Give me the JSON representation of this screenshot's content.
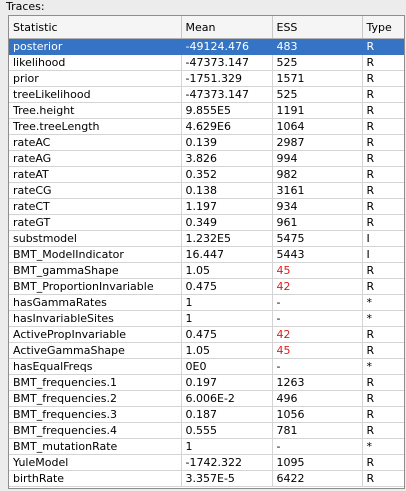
{
  "panel": {
    "label": "Traces:"
  },
  "table": {
    "columns": [
      "Statistic",
      "Mean",
      "ESS",
      "Type"
    ],
    "selected_index": 0,
    "warn_color": "#e11a1a",
    "selection_color": "#3574c4",
    "rows": [
      {
        "statistic": "posterior",
        "mean": "-49124.476",
        "ess": "483",
        "type": "R",
        "ess_warn": false
      },
      {
        "statistic": "likelihood",
        "mean": "-47373.147",
        "ess": "525",
        "type": "R",
        "ess_warn": false
      },
      {
        "statistic": "prior",
        "mean": "-1751.329",
        "ess": "1571",
        "type": "R",
        "ess_warn": false
      },
      {
        "statistic": "treeLikelihood",
        "mean": "-47373.147",
        "ess": "525",
        "type": "R",
        "ess_warn": false
      },
      {
        "statistic": "Tree.height",
        "mean": "9.855E5",
        "ess": "1191",
        "type": "R",
        "ess_warn": false
      },
      {
        "statistic": "Tree.treeLength",
        "mean": "4.629E6",
        "ess": "1064",
        "type": "R",
        "ess_warn": false
      },
      {
        "statistic": "rateAC",
        "mean": "0.139",
        "ess": "2987",
        "type": "R",
        "ess_warn": false
      },
      {
        "statistic": "rateAG",
        "mean": "3.826",
        "ess": "994",
        "type": "R",
        "ess_warn": false
      },
      {
        "statistic": "rateAT",
        "mean": "0.352",
        "ess": "982",
        "type": "R",
        "ess_warn": false
      },
      {
        "statistic": "rateCG",
        "mean": "0.138",
        "ess": "3161",
        "type": "R",
        "ess_warn": false
      },
      {
        "statistic": "rateCT",
        "mean": "1.197",
        "ess": "934",
        "type": "R",
        "ess_warn": false
      },
      {
        "statistic": "rateGT",
        "mean": "0.349",
        "ess": "961",
        "type": "R",
        "ess_warn": false
      },
      {
        "statistic": "substmodel",
        "mean": "1.232E5",
        "ess": "5475",
        "type": "I",
        "ess_warn": false
      },
      {
        "statistic": "BMT_ModelIndicator",
        "mean": "16.447",
        "ess": "5443",
        "type": "I",
        "ess_warn": false
      },
      {
        "statistic": "BMT_gammaShape",
        "mean": "1.05",
        "ess": "45",
        "type": "R",
        "ess_warn": true
      },
      {
        "statistic": "BMT_ProportionInvariable",
        "mean": "0.475",
        "ess": "42",
        "type": "R",
        "ess_warn": true
      },
      {
        "statistic": "hasGammaRates",
        "mean": "1",
        "ess": "-",
        "type": "*",
        "ess_warn": false
      },
      {
        "statistic": "hasInvariableSites",
        "mean": "1",
        "ess": "-",
        "type": "*",
        "ess_warn": false
      },
      {
        "statistic": "ActivePropInvariable",
        "mean": "0.475",
        "ess": "42",
        "type": "R",
        "ess_warn": true
      },
      {
        "statistic": "ActiveGammaShape",
        "mean": "1.05",
        "ess": "45",
        "type": "R",
        "ess_warn": true
      },
      {
        "statistic": "hasEqualFreqs",
        "mean": "0E0",
        "ess": "-",
        "type": "*",
        "ess_warn": false
      },
      {
        "statistic": "BMT_frequencies.1",
        "mean": "0.197",
        "ess": "1263",
        "type": "R",
        "ess_warn": false
      },
      {
        "statistic": "BMT_frequencies.2",
        "mean": "6.006E-2",
        "ess": "496",
        "type": "R",
        "ess_warn": false
      },
      {
        "statistic": "BMT_frequencies.3",
        "mean": "0.187",
        "ess": "1056",
        "type": "R",
        "ess_warn": false
      },
      {
        "statistic": "BMT_frequencies.4",
        "mean": "0.555",
        "ess": "781",
        "type": "R",
        "ess_warn": false
      },
      {
        "statistic": "BMT_mutationRate",
        "mean": "1",
        "ess": "-",
        "type": "*",
        "ess_warn": false
      },
      {
        "statistic": "YuleModel",
        "mean": "-1742.322",
        "ess": "1095",
        "type": "R",
        "ess_warn": false
      },
      {
        "statistic": "birthRate",
        "mean": "3.357E-5",
        "ess": "6422",
        "type": "R",
        "ess_warn": false
      }
    ]
  }
}
